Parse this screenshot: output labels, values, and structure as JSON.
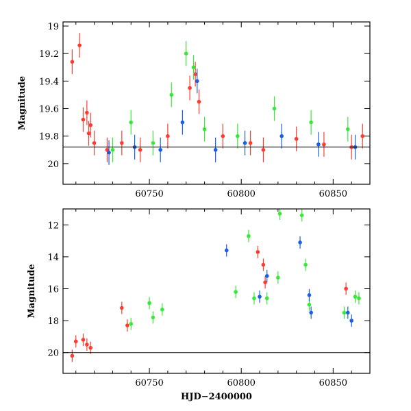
{
  "chart_data": [
    {
      "type": "scatter",
      "title": "",
      "xlabel": "",
      "ylabel": "Magnitude",
      "xlim": [
        60703,
        60870
      ],
      "ylim": [
        20.15,
        18.97
      ],
      "y_inverted": true,
      "xticks": [
        60750,
        60800,
        60850
      ],
      "xtick_labels": [
        "60750",
        "60800",
        "60850"
      ],
      "yticks": [
        19,
        19.2,
        19.4,
        19.6,
        19.8,
        20
      ],
      "ytick_labels": [
        "19",
        "19.2",
        "19.4",
        "19.6",
        "19.8",
        "20"
      ],
      "reference_line_y": 19.88,
      "colors": {
        "red": "#ff3b2f",
        "green": "#38e838",
        "blue": "#1a5ee6"
      },
      "series": [
        {
          "color": "red",
          "x": [
            60708,
            60712,
            60714,
            60716,
            60717,
            60718,
            60720,
            60727,
            60735,
            60745,
            60760,
            60772,
            60775,
            60777,
            60790,
            60805,
            60812,
            60830,
            60845,
            60860,
            60866
          ],
          "y": [
            19.26,
            19.14,
            19.68,
            19.63,
            19.78,
            19.72,
            19.85,
            19.9,
            19.85,
            19.9,
            19.8,
            19.45,
            19.35,
            19.55,
            19.8,
            19.85,
            19.9,
            19.82,
            19.86,
            19.88,
            19.8
          ]
        },
        {
          "color": "green",
          "x": [
            60730,
            60740,
            60752,
            60762,
            60770,
            60774,
            60780,
            60798,
            60818,
            60838,
            60858
          ],
          "y": [
            19.9,
            19.7,
            19.85,
            19.5,
            19.2,
            19.3,
            19.75,
            19.8,
            19.6,
            19.7,
            19.75
          ]
        },
        {
          "color": "blue",
          "x": [
            60728,
            60742,
            60756,
            60768,
            60776,
            60786,
            60802,
            60822,
            60842,
            60862
          ],
          "y": [
            19.92,
            19.88,
            19.9,
            19.7,
            19.4,
            19.9,
            19.85,
            19.8,
            19.86,
            19.88
          ]
        }
      ]
    },
    {
      "type": "scatter",
      "title": "",
      "xlabel": "HJD−2400000",
      "ylabel": "Magnitude",
      "xlim": [
        60703,
        60870
      ],
      "ylim": [
        21.3,
        11.0
      ],
      "y_inverted": true,
      "xticks": [
        60750,
        60800,
        60850
      ],
      "xtick_labels": [
        "60750",
        "60800",
        "60850"
      ],
      "yticks": [
        12,
        14,
        16,
        18,
        20
      ],
      "ytick_labels": [
        "12",
        "14",
        "16",
        "18",
        "20"
      ],
      "reference_line_y": 20.0,
      "colors": {
        "red": "#ff3b2f",
        "green": "#38e838",
        "blue": "#1a5ee6"
      },
      "series": [
        {
          "color": "red",
          "x": [
            60708,
            60710,
            60714,
            60716,
            60718,
            60735,
            60738,
            60809,
            60812,
            60813,
            60857
          ],
          "y": [
            20.2,
            19.3,
            19.2,
            19.5,
            19.7,
            17.2,
            18.3,
            13.7,
            14.5,
            15.6,
            16.0
          ]
        },
        {
          "color": "green",
          "x": [
            60740,
            60750,
            60752,
            60757,
            60797,
            60804,
            60807,
            60814,
            60820,
            60821,
            60833,
            60835,
            60837,
            60856,
            60862,
            60864
          ],
          "y": [
            18.2,
            16.9,
            17.8,
            17.3,
            16.2,
            12.7,
            16.6,
            16.6,
            15.3,
            11.3,
            11.4,
            14.5,
            17.0,
            17.5,
            16.5,
            16.6
          ]
        },
        {
          "color": "blue",
          "x": [
            60792,
            60810,
            60814,
            60832,
            60837,
            60838,
            60858,
            60860
          ],
          "y": [
            13.6,
            16.5,
            15.2,
            13.1,
            16.4,
            17.5,
            17.5,
            18.0
          ]
        }
      ]
    }
  ]
}
